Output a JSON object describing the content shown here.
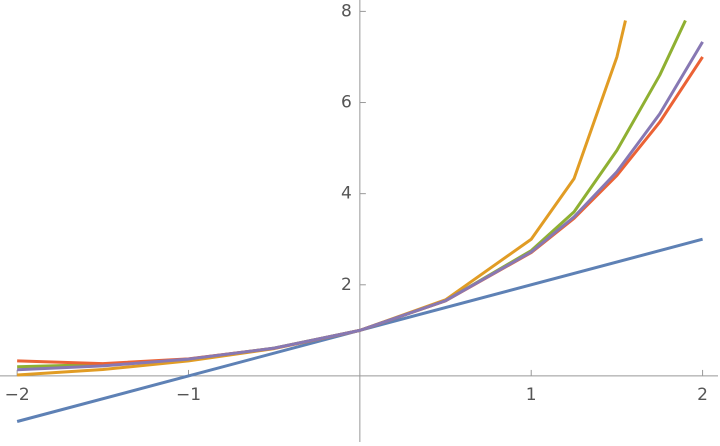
{
  "chart_data": {
    "type": "line",
    "xlim": [
      -2.1,
      2.09
    ],
    "ylim": [
      -1.45,
      8.25
    ],
    "xticks": [
      {
        "value": -2,
        "label": "−2"
      },
      {
        "value": -1,
        "label": "−1"
      },
      1,
      2
    ],
    "yticks": [
      2,
      4,
      6,
      8
    ],
    "series": [
      {
        "color": "#5e81b5",
        "x": [
          -2,
          2
        ],
        "values": [
          -1,
          3
        ]
      },
      {
        "color": "#e19c24",
        "x": [
          -2,
          -1.5,
          -1,
          -0.5,
          0,
          0.5,
          1,
          1.25,
          1.5,
          1.55
        ],
        "values": [
          0.02,
          0.14,
          0.33,
          0.6,
          1,
          1.67,
          3,
          4.33,
          7,
          7.8
        ]
      },
      {
        "color": "#8fb032",
        "x": [
          -2,
          -1.5,
          -1,
          -0.5,
          0,
          0.5,
          1,
          1.25,
          1.5,
          1.75,
          1.9
        ],
        "values": [
          0.2,
          0.25,
          0.37,
          0.61,
          1,
          1.65,
          2.75,
          3.6,
          4.95,
          6.6,
          7.8
        ]
      },
      {
        "color": "#eb6235",
        "x": [
          -2,
          -1.5,
          -1,
          -0.5,
          0,
          0.5,
          1,
          1.25,
          1.5,
          1.75,
          2
        ],
        "values": [
          0.33,
          0.27,
          0.375,
          0.607,
          1,
          1.648,
          2.708,
          3.46,
          4.4,
          5.57,
          7
        ]
      },
      {
        "color": "#8778b3",
        "x": [
          -2,
          -1.5,
          -1,
          -0.5,
          0,
          0.5,
          1,
          1.25,
          1.5,
          1.75,
          2
        ],
        "values": [
          0.135,
          0.22,
          0.37,
          0.61,
          1,
          1.65,
          2.72,
          3.49,
          4.48,
          5.75,
          7.33
        ]
      }
    ]
  }
}
